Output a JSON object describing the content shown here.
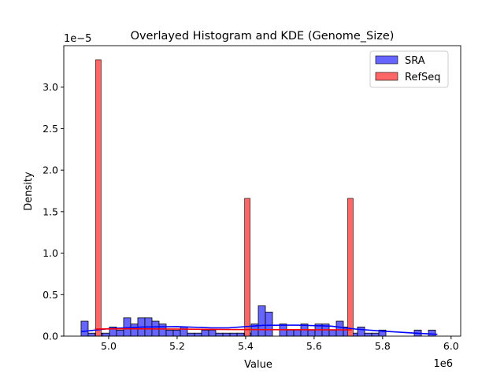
{
  "chart_data": {
    "type": "bar",
    "title": "Overlayed Histogram and KDE (Genome_Size)",
    "xlabel": "Value",
    "ylabel": "Density",
    "x_offset_label": "1e6",
    "y_offset_label": "1e−5",
    "xlim": [
      4.869,
      6.028
    ],
    "ylim": [
      0,
      3.5
    ],
    "x_ticks": [
      5.0,
      5.2,
      5.4,
      5.6,
      5.8,
      6.0
    ],
    "x_tick_labels": [
      "5.0",
      "5.2",
      "5.4",
      "5.6",
      "5.8",
      "6.0"
    ],
    "y_ticks": [
      0,
      0.5,
      1.0,
      1.5,
      2.0,
      2.5,
      3.0
    ],
    "y_tick_labels": [
      "0.0",
      "0.5",
      "1.0",
      "1.5",
      "2.0",
      "2.5",
      "3.0"
    ],
    "grid": false,
    "legend": "top-right",
    "series": [
      {
        "name": "SRA",
        "color": "#0000ff",
        "bin_start": 4.9195,
        "bin_width": 0.0207,
        "values": [
          0.18,
          0.036,
          0.036,
          0.036,
          0.11,
          0.073,
          0.22,
          0.146,
          0.22,
          0.22,
          0.18,
          0.146,
          0.073,
          0.073,
          0.11,
          0.036,
          0.036,
          0.073,
          0.073,
          0.036,
          0.036,
          0.036,
          0.036,
          0.036,
          0.146,
          0.365,
          0.29,
          0,
          0.146,
          0.073,
          0.073,
          0.146,
          0.073,
          0.146,
          0.146,
          0.073,
          0.18,
          0.11,
          0.036,
          0.11,
          0.036,
          0.036,
          0.073,
          0,
          0,
          0,
          0,
          0.073,
          0,
          0.073
        ],
        "kde": {
          "x": [
            4.92,
            5.0,
            5.1,
            5.2,
            5.3,
            5.35,
            5.45,
            5.55,
            5.65,
            5.72,
            5.8,
            5.9,
            5.96
          ],
          "y": [
            0.054,
            0.09,
            0.11,
            0.115,
            0.1,
            0.1,
            0.13,
            0.133,
            0.12,
            0.085,
            0.06,
            0.035,
            0.022
          ]
        }
      },
      {
        "name": "RefSeq",
        "color": "#ff0000",
        "bars": [
          {
            "x0": 4.962,
            "x1": 4.978,
            "value": 3.33
          },
          {
            "x0": 5.397,
            "x1": 5.413,
            "value": 1.66
          },
          {
            "x0": 5.698,
            "x1": 5.714,
            "value": 1.66
          }
        ],
        "kde": {
          "x": [
            4.96,
            5.05,
            5.2,
            5.35,
            5.5,
            5.6,
            5.71
          ],
          "y": [
            0.085,
            0.088,
            0.085,
            0.08,
            0.078,
            0.077,
            0.076
          ]
        }
      }
    ]
  }
}
